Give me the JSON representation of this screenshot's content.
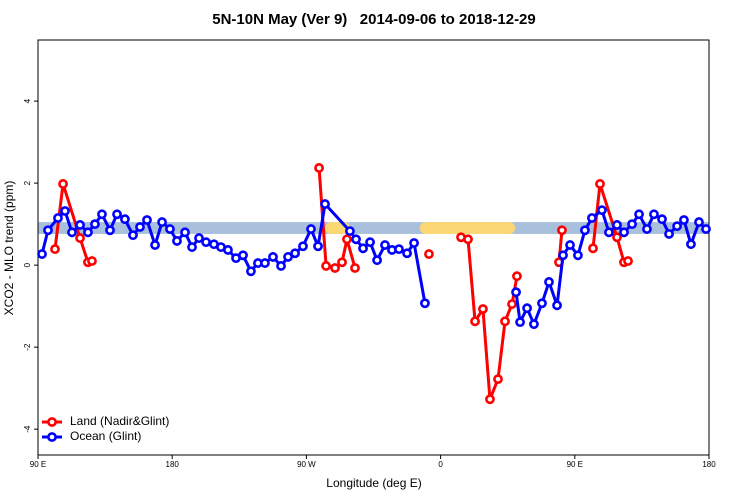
{
  "chart_data": {
    "type": "line",
    "title": "5N-10N May (Ver 9)   2014-09-06 to 2018-12-29",
    "x_label": "Longitude (deg E)",
    "y_label": "XCO2 - MLO trend (ppm)",
    "xlim": [
      90,
      540
    ],
    "ylim": [
      -4.63,
      5.49
    ],
    "xticks": [
      {
        "value": 90,
        "label": "90 E"
      },
      180,
      {
        "value": 270,
        "label": "90 W"
      },
      {
        "value": 360,
        "label": "0"
      },
      {
        "value": 450,
        "label": "90 E"
      },
      {
        "value": 540,
        "label": "180"
      }
    ],
    "yticks": [
      -4,
      -2,
      0,
      2,
      4
    ],
    "band_ylim": [
      0.76,
      1.05
    ],
    "band_color": "#a9c0dc",
    "band_highlights": [
      [
        282.5,
        299
      ],
      [
        346,
        410
      ]
    ],
    "band_highlight_color": "#fbd874",
    "legend": "bottom-left",
    "series": [
      {
        "name": "Land (Nadir&Glint)",
        "color": "#ff0000",
        "x": [
          101.4,
          106.8,
          118.2,
          123.5,
          126.2,
          null,
          278.5,
          283.2,
          289.2,
          293.9,
          297.2,
          302.6,
          null,
          352.2,
          null,
          373.7,
          378.4,
          383.1,
          388.4,
          393.1,
          398.5,
          403.2,
          407.9,
          411.2,
          null,
          439.4,
          441.4,
          null,
          462.2,
          466.9,
          478.3,
          483.0,
          485.7
        ],
        "values": [
          0.39,
          1.98,
          0.66,
          0.07,
          0.1,
          null,
          2.37,
          -0.02,
          -0.07,
          0.07,
          0.63,
          -0.07,
          null,
          0.27,
          null,
          0.68,
          0.63,
          -1.37,
          -1.07,
          -3.27,
          -2.78,
          -1.37,
          -0.95,
          -0.27,
          null,
          0.07,
          0.85,
          null,
          0.41,
          1.98,
          0.68,
          0.07,
          0.1
        ]
      },
      {
        "name": "Ocean (Glint)",
        "color": "#0000ff",
        "x": [
          92.7,
          96.7,
          103.4,
          108.1,
          112.8,
          118.2,
          123.5,
          128.2,
          132.9,
          138.3,
          143.0,
          148.3,
          153.7,
          158.4,
          163.1,
          168.5,
          173.2,
          178.5,
          183.2,
          188.6,
          193.3,
          198.0,
          202.7,
          208.0,
          212.7,
          217.4,
          222.8,
          227.5,
          232.8,
          237.5,
          242.2,
          247.6,
          253.0,
          257.7,
          262.4,
          267.7,
          273.1,
          277.8,
          282.5,
          299.2,
          303.3,
          308.0,
          312.7,
          317.4,
          322.7,
          327.4,
          332.1,
          337.5,
          342.2,
          349.5,
          null,
          410.6,
          413.3,
          418.0,
          422.6,
          428.0,
          432.7,
          438.1,
          442.1,
          446.8,
          452.1,
          456.8,
          461.5,
          468.2,
          472.9,
          478.3,
          483.0,
          488.4,
          493.1,
          498.4,
          503.1,
          508.5,
          513.2,
          518.6,
          523.2,
          527.9,
          533.3,
          538.0
        ],
        "values": [
          0.27,
          0.85,
          1.15,
          1.32,
          0.8,
          0.98,
          0.8,
          1.0,
          1.24,
          0.85,
          1.24,
          1.12,
          0.73,
          0.93,
          1.1,
          0.49,
          1.05,
          0.88,
          0.59,
          0.8,
          0.44,
          0.66,
          0.56,
          0.51,
          0.44,
          0.37,
          0.17,
          0.24,
          -0.15,
          0.05,
          0.05,
          0.2,
          -0.02,
          0.2,
          0.29,
          0.46,
          0.88,
          0.46,
          1.49,
          0.83,
          0.63,
          0.41,
          0.56,
          0.12,
          0.49,
          0.37,
          0.39,
          0.29,
          0.54,
          -0.93,
          null,
          -0.66,
          -1.39,
          -1.05,
          -1.44,
          -0.93,
          -0.41,
          -0.98,
          0.24,
          0.49,
          0.24,
          0.85,
          1.15,
          1.34,
          0.8,
          0.98,
          0.8,
          1.0,
          1.24,
          0.88,
          1.24,
          1.12,
          0.76,
          0.95,
          1.1,
          0.51,
          1.05,
          0.88
        ]
      }
    ]
  }
}
